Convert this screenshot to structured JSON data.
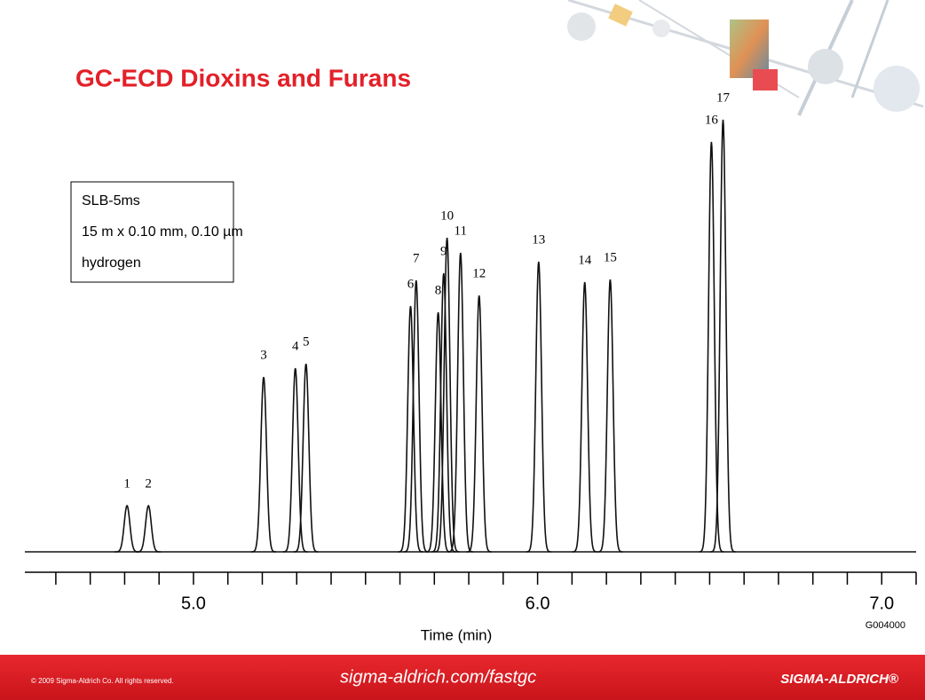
{
  "slide": {
    "title": "GC-ECD Dioxins and Furans",
    "info_box": [
      "SLB-5ms",
      "15 m x 0.10 mm, 0.10 µm",
      "hydrogen"
    ],
    "code": "G004000",
    "footer": {
      "copyright": "© 2009 Sigma-Aldrich Co. All rights reserved.",
      "url": "sigma-aldrich.com/fastgc",
      "brand": "SIGMA-ALDRICH®"
    }
  },
  "chart_data": {
    "type": "chromatogram",
    "x_label": "Time (min)",
    "color": "#111111",
    "peak_labels": [
      "1",
      "2",
      "3",
      "4",
      "5",
      "6",
      "7",
      "8",
      "9",
      "10",
      "11",
      "12",
      "13",
      "14",
      "15",
      "16",
      "17"
    ],
    "x": [
      4.807,
      4.869,
      5.204,
      5.296,
      5.327,
      5.631,
      5.647,
      5.711,
      5.727,
      5.737,
      5.776,
      5.83,
      6.003,
      6.137,
      6.211,
      6.505,
      6.539
    ],
    "values": [
      10.4,
      10.4,
      39.4,
      41.4,
      42.4,
      55.4,
      61.2,
      54,
      62.8,
      70.8,
      67.4,
      57.8,
      65.4,
      60.8,
      61.4,
      92.4,
      97.4
    ],
    "xlim": [
      4.51,
      7.1
    ],
    "ylim": [
      0,
      100
    ],
    "xticks": [
      {
        "value": 5,
        "label": "5.0"
      },
      {
        "value": 6,
        "label": "6.0"
      },
      {
        "value": 7,
        "label": "7.0"
      }
    ],
    "xminorticks": [
      4.6,
      4.7,
      4.8,
      4.9,
      5.1,
      5.2,
      5.3,
      5.4,
      5.5,
      5.6,
      5.7,
      5.8,
      5.9,
      6.1,
      6.2,
      6.3,
      6.4,
      6.5,
      6.6,
      6.7,
      6.8,
      6.9,
      7.1
    ]
  }
}
